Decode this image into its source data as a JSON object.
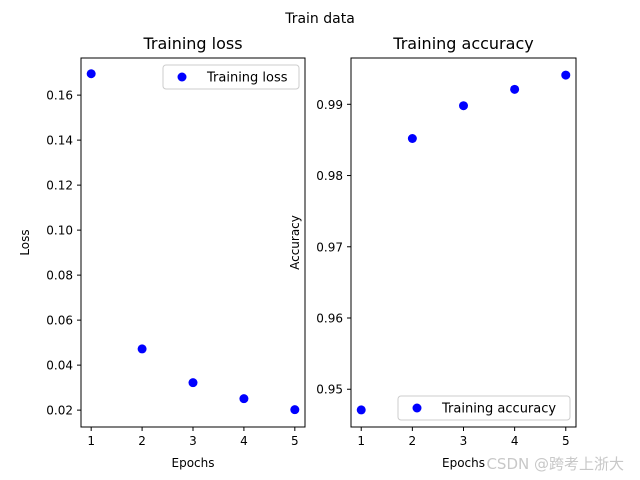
{
  "figure": {
    "suptitle": "Train data",
    "watermark": "CSDN @跨考上浙大"
  },
  "chart_data": [
    {
      "type": "scatter",
      "title": "Training loss",
      "xlabel": "Epochs",
      "ylabel": "Loss",
      "x": [
        1,
        2,
        3,
        4,
        5
      ],
      "xlim": [
        0.8,
        5.2
      ],
      "ylim": [
        0.0125,
        0.1765
      ],
      "xticks": [
        1,
        2,
        3,
        4,
        5
      ],
      "xtick_labels": [
        "1",
        "2",
        "3",
        "4",
        "5"
      ],
      "yticks": [
        0.02,
        0.04,
        0.06,
        0.08,
        0.1,
        0.12,
        0.14,
        0.16
      ],
      "ytick_labels": [
        "0.02",
        "0.04",
        "0.06",
        "0.08",
        "0.10",
        "0.12",
        "0.14",
        "0.16"
      ],
      "grid": false,
      "legend_position": "upper right",
      "color": "#0000ff",
      "series": [
        {
          "name": "Training loss",
          "values": [
            0.1695,
            0.0472,
            0.0322,
            0.0251,
            0.0202
          ]
        }
      ]
    },
    {
      "type": "scatter",
      "title": "Training accuracy",
      "xlabel": "Epochs",
      "ylabel": "Accuracy",
      "x": [
        1,
        2,
        3,
        4,
        5
      ],
      "xlim": [
        0.8,
        5.2
      ],
      "ylim": [
        0.9447,
        0.9965
      ],
      "xticks": [
        1,
        2,
        3,
        4,
        5
      ],
      "xtick_labels": [
        "1",
        "2",
        "3",
        "4",
        "5"
      ],
      "yticks": [
        0.95,
        0.96,
        0.97,
        0.98,
        0.99
      ],
      "ytick_labels": [
        "0.95",
        "0.96",
        "0.97",
        "0.98",
        "0.99"
      ],
      "grid": false,
      "legend_position": "lower right",
      "color": "#0000ff",
      "series": [
        {
          "name": "Training accuracy",
          "values": [
            0.9471,
            0.9852,
            0.9898,
            0.9921,
            0.9941
          ]
        }
      ]
    }
  ]
}
